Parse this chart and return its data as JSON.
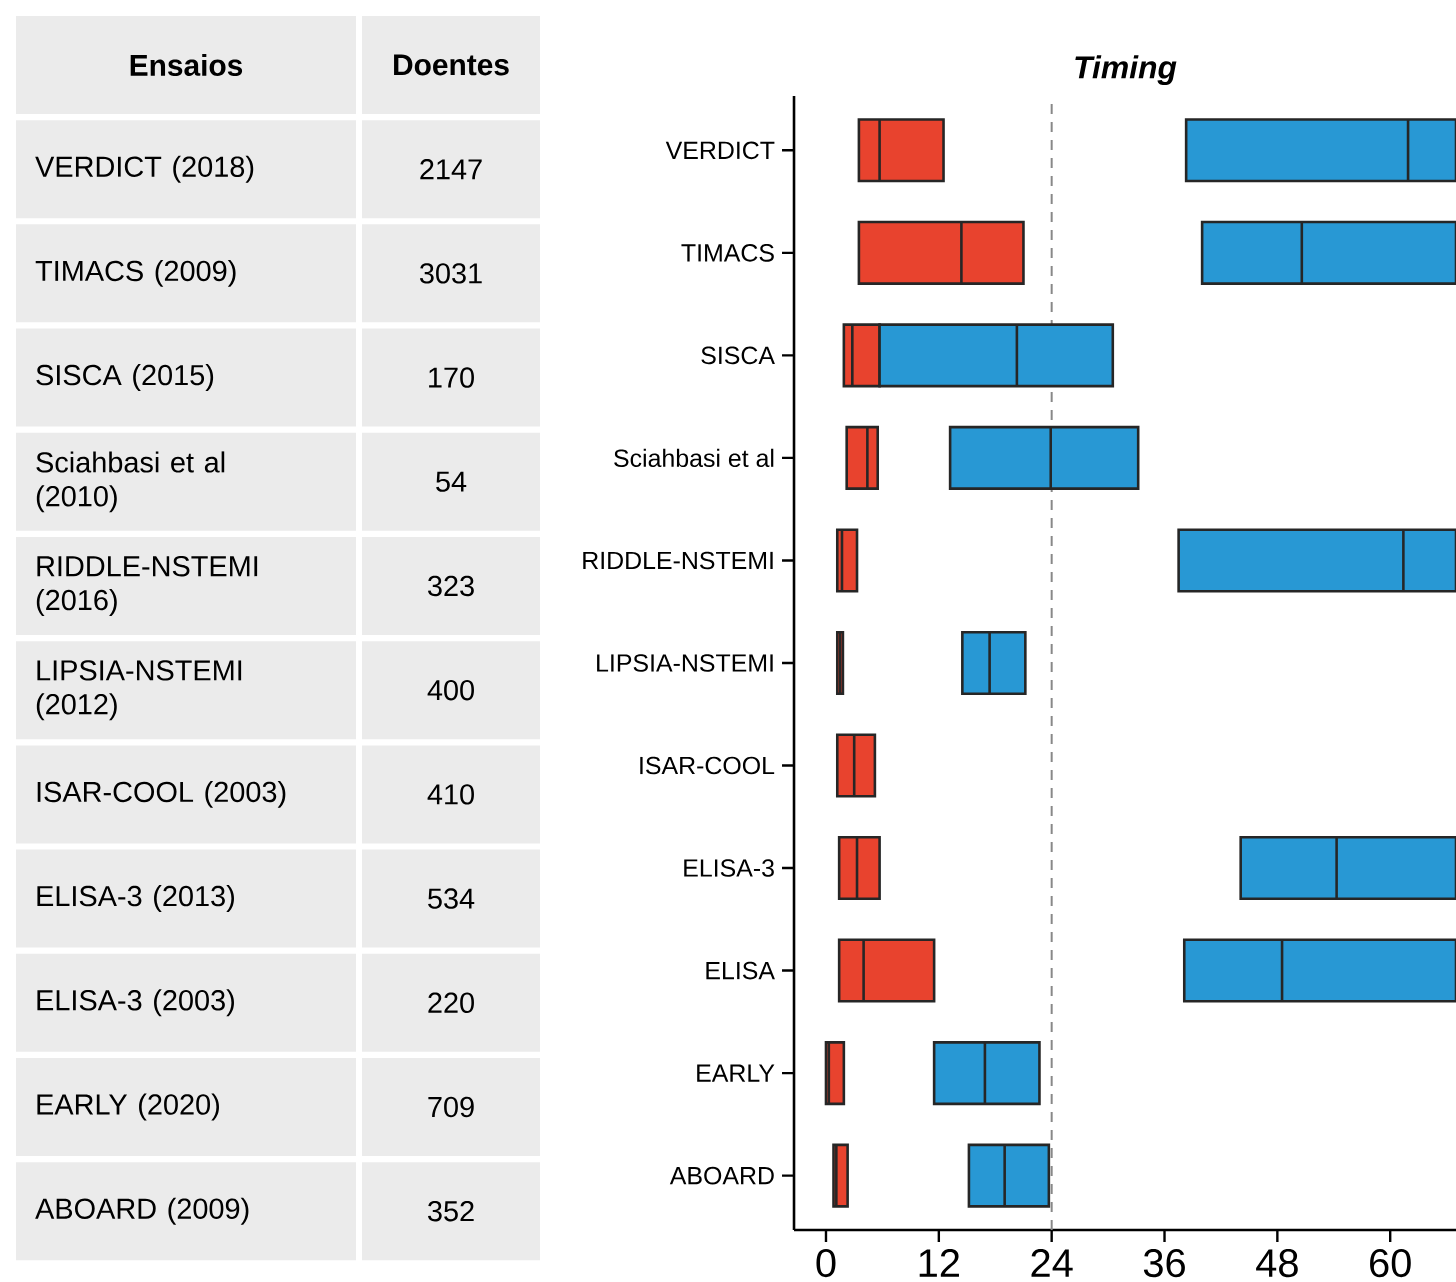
{
  "chart_data": {
    "type": "box",
    "orientation": "horizontal",
    "title": "Timing",
    "categories": [
      "VERDICT",
      "TIMACS",
      "SISCA",
      "Sciahbasi et al",
      "RIDDLE-NSTEMI",
      "LIPSIA-NSTEMI",
      "ISAR-COOL",
      "ELISA-3",
      "ELISA",
      "EARLY",
      "ABOARD"
    ],
    "xlim": [
      -3.4,
      67
    ],
    "xticks": [
      0,
      12,
      24,
      36,
      48,
      60
    ],
    "series": [
      {
        "color": "#e8432e",
        "boxes": [
          {
            "low": 3.5,
            "q1": 3.5,
            "median": 5.7,
            "q3": 12.5,
            "high": 12.5
          },
          {
            "low": 3.5,
            "q1": 3.5,
            "median": 14.4,
            "q3": 21,
            "high": 21
          },
          {
            "low": 1.9,
            "q1": 1.9,
            "median": 2.8,
            "q3": 5.7,
            "high": 5.7
          },
          {
            "low": 2.2,
            "q1": 2.2,
            "median": 4.4,
            "q3": 5.5,
            "high": 5.5
          },
          {
            "low": 1.2,
            "q1": 1.2,
            "median": 1.7,
            "q3": 3.3,
            "high": 3.3
          },
          {
            "low": 1.2,
            "q1": 1.2,
            "median": 1.5,
            "q3": 1.8,
            "high": 1.8
          },
          {
            "low": 1.2,
            "q1": 1.2,
            "median": 3,
            "q3": 5.2,
            "high": 5.2
          },
          {
            "low": 1.4,
            "q1": 1.4,
            "median": 3.3,
            "q3": 5.7,
            "high": 5.7
          },
          {
            "low": 1.4,
            "q1": 1.4,
            "median": 4,
            "q3": 11.5,
            "high": 11.5
          },
          {
            "low": 0,
            "q1": 0,
            "median": 0.3,
            "q3": 1.9,
            "high": 1.9
          },
          {
            "low": 0.8,
            "q1": 0.8,
            "median": 1.1,
            "q3": 2.3,
            "high": 2.3
          }
        ]
      },
      {
        "color": "#2898d4",
        "boxes": [
          {
            "low": 38.3,
            "q1": 38.3,
            "median": 61.9,
            "q3": 67,
            "high": 67
          },
          {
            "low": 40,
            "q1": 40,
            "median": 50.6,
            "q3": 67,
            "high": 67
          },
          {
            "low": 5.7,
            "q1": 5.7,
            "median": 20.3,
            "q3": 30.5,
            "high": 30.5
          },
          {
            "low": 13.2,
            "q1": 13.2,
            "median": 23.9,
            "q3": 33.2,
            "high": 33.2
          },
          {
            "low": 37.5,
            "q1": 37.5,
            "median": 61.4,
            "q3": 67,
            "high": 67
          },
          {
            "low": 14.5,
            "q1": 14.5,
            "median": 17.4,
            "q3": 21.2,
            "high": 21.2
          },
          null,
          {
            "low": 44.1,
            "q1": 44.1,
            "median": 54.3,
            "q3": 67,
            "high": 67
          },
          {
            "low": 38.1,
            "q1": 38.1,
            "median": 48.5,
            "q3": 67,
            "high": 67
          },
          {
            "low": 11.5,
            "q1": 11.5,
            "median": 16.9,
            "q3": 22.7,
            "high": 22.7
          },
          {
            "low": 15.2,
            "q1": 15.2,
            "median": 19,
            "q3": 23.7,
            "high": 23.7
          }
        ]
      }
    ],
    "ref_lines": [
      {
        "axis": "x",
        "value": 24,
        "color": "#888888",
        "line_style": "dashed"
      }
    ],
    "annotations": [
      "Ensaios",
      "Doentes",
      "VERDICT (2018)",
      "2147",
      "TIMACS (2009)",
      "3031",
      "SISCA (2015)",
      "170",
      "Sciahbasi et al (2010)",
      "54",
      "RIDDLE-NSTEMI (2016)",
      "323",
      "LIPSIA-NSTEMI (2012)",
      "400",
      "ISAR-COOL (2003)",
      "410",
      "ELISA-3 (2013)",
      "534",
      "ELISA-3 (2003)",
      "220",
      "EARLY (2020)",
      "709",
      "ABOARD (2009)",
      "352"
    ]
  }
}
